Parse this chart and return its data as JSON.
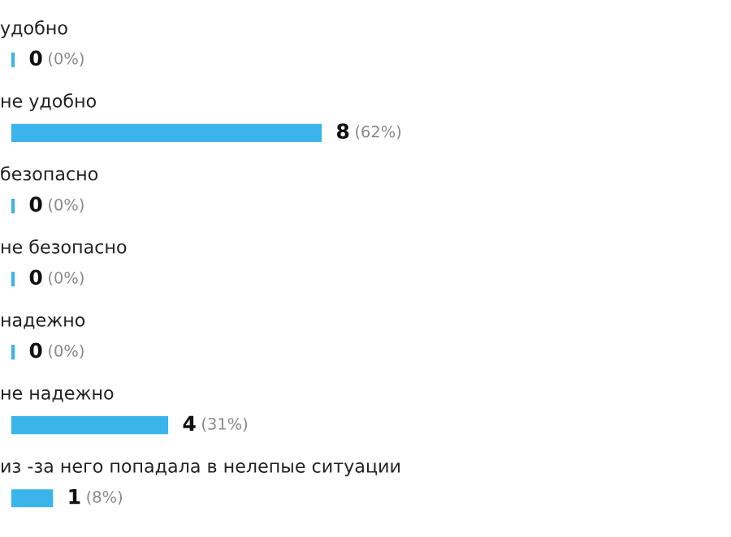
{
  "chart_data": {
    "type": "bar",
    "orientation": "horizontal",
    "categories": [
      "удобно",
      "не удобно",
      "безопасно",
      "не безопасно",
      "надежно",
      "не надежно",
      "из -за него попадала в нелепые ситуации"
    ],
    "values": [
      0,
      8,
      0,
      0,
      0,
      4,
      1
    ],
    "value_labels": [
      "0 (0%)",
      "8 (62%)",
      "0 (0%)",
      "0 (0%)",
      "0 (0%)",
      "4 (31%)",
      "1 (8%)"
    ],
    "color": "#3ab4ea"
  }
}
